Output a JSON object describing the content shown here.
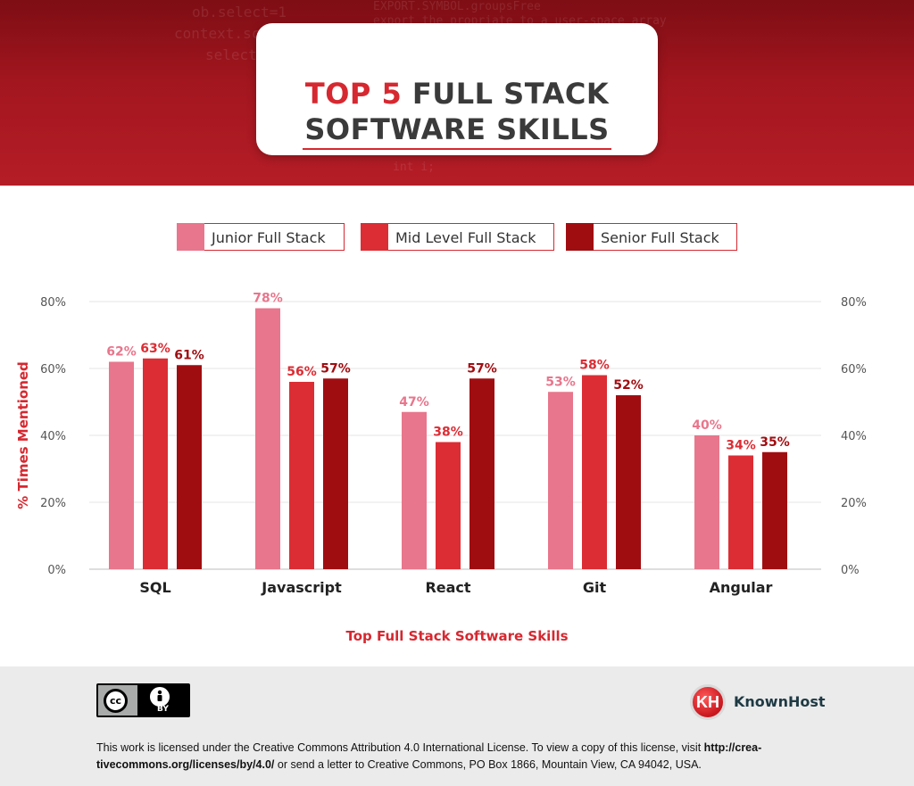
{
  "header": {
    "title_prefix": "TOP 5",
    "title_rest": "FULL STACK",
    "title_line2": "SOFTWARE SKILLS",
    "background_code": [
      "ob.select=1",
      "context.sc",
      "selecte",
      "EXPORT.SYMBOL.groupsFree",
      "export the propriate to a user-space array",
      "int i;"
    ]
  },
  "colors": {
    "junior": "#e8768c",
    "mid": "#dc2d34",
    "senior": "#a00d11",
    "accent": "#d62830",
    "axis_text": "#555555"
  },
  "chart_data": {
    "type": "bar",
    "categories": [
      "SQL",
      "Javascript",
      "React",
      "Git",
      "Angular"
    ],
    "series": [
      {
        "name": "Junior Full Stack",
        "values": [
          62,
          78,
          47,
          53,
          40
        ]
      },
      {
        "name": "Mid Level Full Stack",
        "values": [
          63,
          56,
          38,
          58,
          34
        ]
      },
      {
        "name": "Senior Full Stack",
        "values": [
          61,
          57,
          57,
          52,
          35
        ]
      }
    ],
    "data_labels": [
      [
        "62%",
        "78%",
        "47%",
        "53%",
        "40%"
      ],
      [
        "63%",
        "56%",
        "38%",
        "58%",
        "34%"
      ],
      [
        "61%",
        "57%",
        "57%",
        "52%",
        "35%"
      ]
    ],
    "xlabel": "Top Full Stack Software Skills",
    "ylabel": "% Times Mentioned",
    "ylim": [
      0,
      80
    ],
    "yticks": [
      "0%",
      "20%",
      "40%",
      "60%",
      "80%"
    ],
    "ytick_values": [
      0,
      20,
      40,
      60,
      80
    ],
    "grid": true,
    "legend_position": "top-center"
  },
  "footer": {
    "cc_badge_text": "cc",
    "cc_by_text": "BY",
    "brand_logo_text": "KH",
    "brand_name": "KnownHost",
    "license_text_1": "This work is licensed under the Creative Commons Attribution 4.0 International License. To view a copy of this license, visit ",
    "license_link_1": "http://crea-",
    "license_link_2": "tivecommons.org/licenses/by/4.0/",
    "license_text_2": " or send a letter to Creative Commons, PO Box 1866, Mountain View, CA 94042, USA."
  }
}
